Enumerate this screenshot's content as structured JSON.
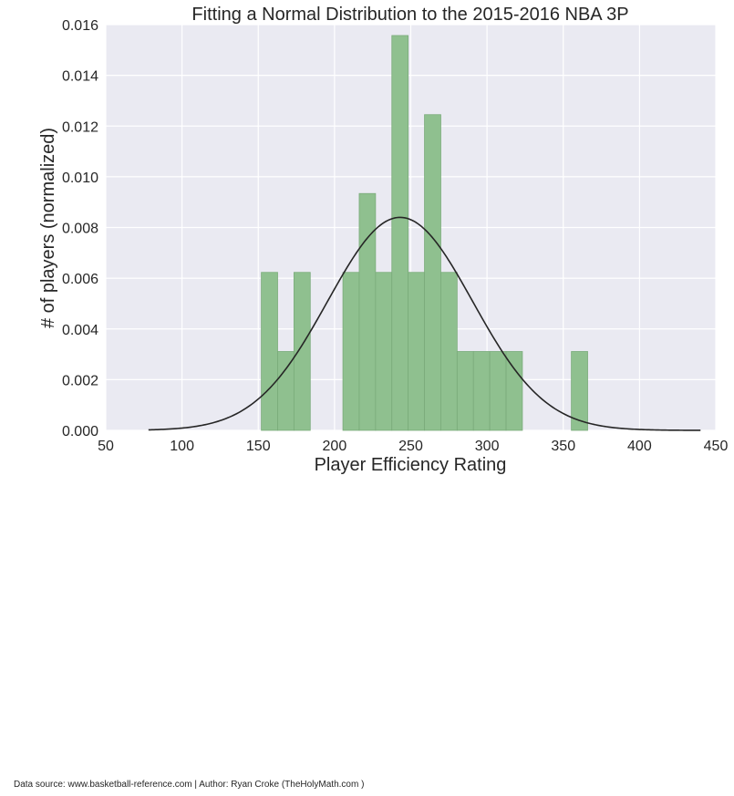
{
  "chart_data": {
    "type": "bar",
    "title": "Fitting a Normal Distribution to the 2015-2016 NBA 3P",
    "xlabel": "Player Efficiency Rating",
    "ylabel": "# of players (normalized)",
    "xlim": [
      50,
      450
    ],
    "ylim": [
      0,
      0.016
    ],
    "xticks": [
      "50",
      "100",
      "150",
      "200",
      "250",
      "300",
      "350",
      "400",
      "450"
    ],
    "yticks": [
      "0.000",
      "0.002",
      "0.004",
      "0.006",
      "0.008",
      "0.010",
      "0.012",
      "0.014",
      "0.016"
    ],
    "grid": true,
    "bins": [
      {
        "x0": 152.0,
        "x1": 162.7,
        "density": 0.00623
      },
      {
        "x0": 162.7,
        "x1": 173.4,
        "density": 0.00311
      },
      {
        "x0": 173.4,
        "x1": 184.1,
        "density": 0.00623
      },
      {
        "x0": 184.1,
        "x1": 194.8,
        "density": 0.0
      },
      {
        "x0": 194.8,
        "x1": 205.5,
        "density": 0.0
      },
      {
        "x0": 205.5,
        "x1": 216.2,
        "density": 0.00623
      },
      {
        "x0": 216.2,
        "x1": 226.9,
        "density": 0.00934
      },
      {
        "x0": 226.9,
        "x1": 237.6,
        "density": 0.00623
      },
      {
        "x0": 237.6,
        "x1": 248.3,
        "density": 0.01557
      },
      {
        "x0": 248.3,
        "x1": 259.0,
        "density": 0.00623
      },
      {
        "x0": 259.0,
        "x1": 269.7,
        "density": 0.01245
      },
      {
        "x0": 269.7,
        "x1": 280.4,
        "density": 0.00623
      },
      {
        "x0": 280.4,
        "x1": 291.1,
        "density": 0.00311
      },
      {
        "x0": 291.1,
        "x1": 301.8,
        "density": 0.00311
      },
      {
        "x0": 301.8,
        "x1": 312.5,
        "density": 0.00311
      },
      {
        "x0": 312.5,
        "x1": 323.2,
        "density": 0.00311
      },
      {
        "x0": 323.2,
        "x1": 333.9,
        "density": 0.0
      },
      {
        "x0": 333.9,
        "x1": 344.6,
        "density": 0.0
      },
      {
        "x0": 344.6,
        "x1": 355.3,
        "density": 0.0
      },
      {
        "x0": 355.3,
        "x1": 366.0,
        "density": 0.00311
      }
    ],
    "fit_curve": {
      "type": "normal",
      "mean": 243,
      "std": 47.5,
      "x_range": [
        78,
        440
      ]
    },
    "colors": {
      "background": "#eaeaf2",
      "grid": "#ffffff",
      "bar_fill": "#8fc08f",
      "bar_edge": "#7aab7a",
      "curve": "#262626"
    }
  },
  "footer": {
    "source": "Data source: www.basketball-reference.com | Author: Ryan Croke (TheHolyMath.com )"
  }
}
